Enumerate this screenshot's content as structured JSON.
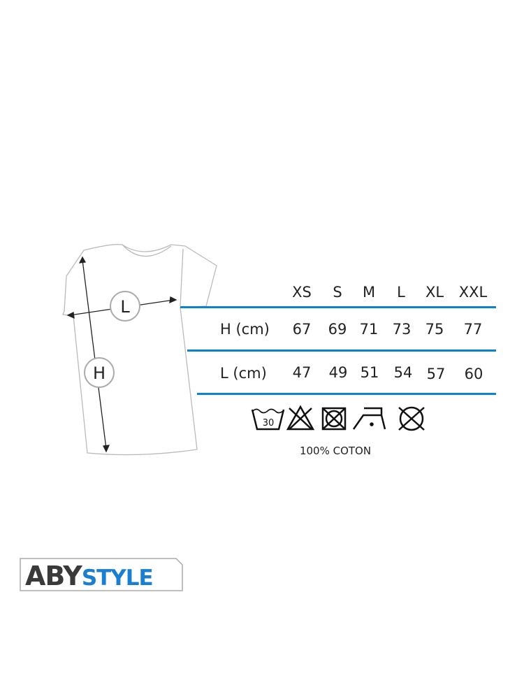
{
  "size_chart": {
    "sizes": [
      "XS",
      "S",
      "M",
      "L",
      "XL",
      "XXL"
    ],
    "rows": [
      {
        "label": "H (cm)",
        "values": [
          "67",
          "69",
          "71",
          "73",
          "75",
          "77"
        ]
      },
      {
        "label": "L (cm)",
        "values": [
          "47",
          "49",
          "51",
          "54",
          "57",
          "60"
        ]
      }
    ]
  },
  "diagram": {
    "length_marker": "L",
    "height_marker": "H"
  },
  "care_icons": {
    "wash_temp": "30",
    "icons": [
      "wash-30-icon",
      "no-bleach-icon",
      "no-tumble-dry-icon",
      "iron-low-icon",
      "no-dry-clean-icon"
    ]
  },
  "material": "100% COTON",
  "logo": {
    "part1": "ABY",
    "part2": "STYLE"
  },
  "colors": {
    "accent": "#0a84d0",
    "logo_dark": "#3a3a3a",
    "logo_blue": "#1a7fd0"
  }
}
